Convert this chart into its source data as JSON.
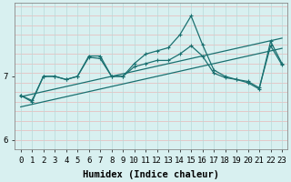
{
  "xlabel": "Humidex (Indice chaleur)",
  "x_values": [
    0,
    1,
    2,
    3,
    4,
    5,
    6,
    7,
    8,
    9,
    10,
    11,
    12,
    13,
    14,
    15,
    16,
    17,
    18,
    19,
    20,
    21,
    22,
    23
  ],
  "line_volatile": [
    6.7,
    6.62,
    7.0,
    7.0,
    6.95,
    7.0,
    7.32,
    7.32,
    7.0,
    7.0,
    7.2,
    7.35,
    7.4,
    7.45,
    7.65,
    7.95,
    7.5,
    7.1,
    7.0,
    6.95,
    6.9,
    6.8,
    7.55,
    7.2
  ],
  "line_smooth": [
    6.7,
    6.6,
    7.0,
    7.0,
    6.95,
    7.0,
    7.3,
    7.28,
    7.0,
    7.0,
    7.15,
    7.2,
    7.25,
    7.25,
    7.35,
    7.48,
    7.32,
    7.05,
    6.98,
    6.95,
    6.92,
    6.82,
    7.48,
    7.18
  ],
  "trend1": [
    6.68,
    6.72,
    6.76,
    6.8,
    6.84,
    6.88,
    6.92,
    6.96,
    7.0,
    7.04,
    7.08,
    7.12,
    7.16,
    7.2,
    7.24,
    7.28,
    7.32,
    7.36,
    7.4,
    7.44,
    7.48,
    7.52,
    7.56,
    7.6
  ],
  "trend2": [
    6.52,
    6.56,
    6.6,
    6.64,
    6.68,
    6.72,
    6.76,
    6.8,
    6.84,
    6.88,
    6.92,
    6.96,
    7.0,
    7.04,
    7.08,
    7.12,
    7.16,
    7.2,
    7.24,
    7.28,
    7.32,
    7.36,
    7.4,
    7.44
  ],
  "bg_color": "#d8f0f0",
  "line_color": "#1a7070",
  "grid_color_h": "#e8b8b8",
  "grid_color_v": "#b8d8d8",
  "ylim": [
    5.85,
    8.15
  ],
  "xlim": [
    -0.5,
    23.5
  ],
  "yticks": [
    6,
    7
  ],
  "xticks": [
    0,
    1,
    2,
    3,
    4,
    5,
    6,
    7,
    8,
    9,
    10,
    11,
    12,
    13,
    14,
    15,
    16,
    17,
    18,
    19,
    20,
    21,
    22,
    23
  ],
  "tick_label_fontsize": 6.5,
  "xlabel_fontsize": 7.5
}
